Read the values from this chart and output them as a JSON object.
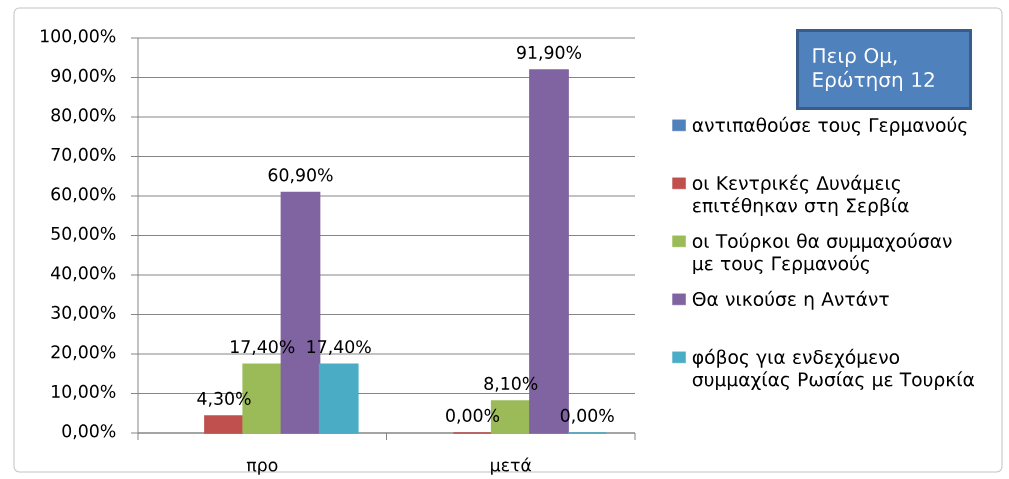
{
  "chart_data": {
    "type": "bar",
    "categories": [
      "προ",
      "μετά"
    ],
    "series": [
      {
        "name": "αντιπαθούσε τους Γερμανούς",
        "color": "#4f81bd",
        "values": [
          null,
          null
        ]
      },
      {
        "name": "οι Κεντρικές Δυνάμεις επιτέθηκαν στη Σερβία",
        "color": "#c0504d",
        "values": [
          4.3,
          0
        ],
        "value_labels": [
          "4,30%",
          "0,00%"
        ]
      },
      {
        "name": "οι Τούρκοι θα συμμαχούσαν με τους Γερμανούς",
        "color": "#9bbb59",
        "values": [
          17.4,
          8.1
        ],
        "value_labels": [
          "17,40%",
          "8,10%"
        ]
      },
      {
        "name": "Θα νικούσε η Αντάντ",
        "color": "#8064a2",
        "values": [
          60.9,
          91.9
        ],
        "value_labels": [
          "60,90%",
          "91,90%"
        ]
      },
      {
        "name": "φόβος για ενδεχόμενο συμμαχίας Ρωσίας με Τουρκία",
        "color": "#4bacc6",
        "values": [
          17.4,
          0
        ],
        "value_labels": [
          "17,40%",
          "0,00%"
        ]
      }
    ],
    "ylim": [
      0,
      100
    ],
    "yticks": [
      {
        "value": 0,
        "label": "0,00%"
      },
      {
        "value": 10,
        "label": "10,00%"
      },
      {
        "value": 20,
        "label": "20,00%"
      },
      {
        "value": 30,
        "label": "30,00%"
      },
      {
        "value": 40,
        "label": "40,00%"
      },
      {
        "value": 50,
        "label": "50,00%"
      },
      {
        "value": 60,
        "label": "60,00%"
      },
      {
        "value": 70,
        "label": "70,00%"
      },
      {
        "value": 80,
        "label": "80,00%"
      },
      {
        "value": 90,
        "label": "90,00%"
      },
      {
        "value": 100,
        "label": "100,00%"
      }
    ],
    "grid": "y",
    "legend": "right",
    "annotations": [
      "Πειρ Ομ, Ερώτηση 12"
    ]
  }
}
